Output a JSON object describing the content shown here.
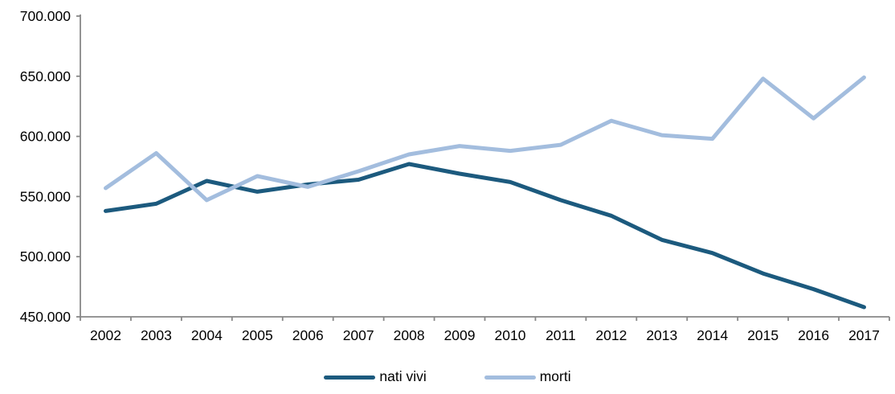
{
  "chart_data": {
    "type": "line",
    "categories": [
      "2002",
      "2003",
      "2004",
      "2005",
      "2006",
      "2007",
      "2008",
      "2009",
      "2010",
      "2011",
      "2012",
      "2013",
      "2014",
      "2015",
      "2016",
      "2017"
    ],
    "series": [
      {
        "name": "nati vivi",
        "color": "#1C5A7E",
        "values": [
          538000,
          544000,
          563000,
          554000,
          560000,
          564000,
          577000,
          569000,
          562000,
          547000,
          534000,
          514000,
          503000,
          486000,
          473000,
          458000
        ]
      },
      {
        "name": "morti",
        "color": "#A3BDDE",
        "values": [
          557000,
          586000,
          547000,
          567000,
          558000,
          571000,
          585000,
          592000,
          588000,
          593000,
          613000,
          601000,
          598000,
          648000,
          615000,
          649000
        ]
      }
    ],
    "ylim": [
      450000,
      700000
    ],
    "ytick_step": 50000,
    "ytick_labels": [
      "700.000",
      "650.000",
      "600.000",
      "550.000",
      "500.000",
      "450.000"
    ],
    "grid": false,
    "legend_position": "bottom",
    "axis_color": "#878787",
    "text_color": "#000000",
    "line_width": 5
  }
}
